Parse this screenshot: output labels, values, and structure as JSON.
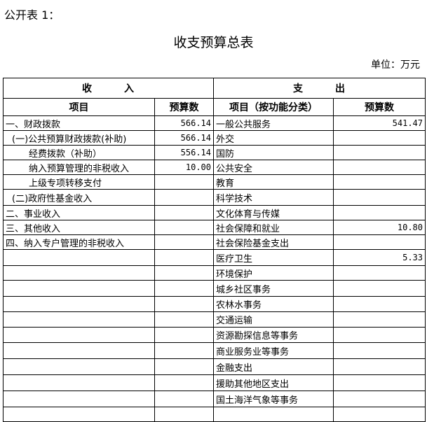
{
  "label": "公开表 1：",
  "title": "收支预算总表",
  "unit": "单位：万元",
  "header": {
    "income": "收　　　入",
    "expense": "支　　　出",
    "item": "项目",
    "budget": "预算数",
    "func_item": "项目（按功能分类）",
    "func_budget": "预算数"
  },
  "rows": [
    {
      "in": "一、财政拨款",
      "indent": 0,
      "inv": "566.14",
      "out": "一般公共服务",
      "outv": "541.47"
    },
    {
      "in": "(一)公共预算财政拨款(补助)",
      "indent": 1,
      "inv": "566.14",
      "out": "外交",
      "outv": ""
    },
    {
      "in": "经费拨款（补助）",
      "indent": 2,
      "inv": "556.14",
      "out": "国防",
      "outv": ""
    },
    {
      "in": "纳入预算管理的非税收入",
      "indent": 2,
      "inv": "10.00",
      "out": "公共安全",
      "outv": ""
    },
    {
      "in": "上级专项转移支付",
      "indent": 2,
      "inv": "",
      "out": "教育",
      "outv": ""
    },
    {
      "in": "(二)政府性基金收入",
      "indent": 1,
      "inv": "",
      "out": "科学技术",
      "outv": ""
    },
    {
      "in": "二、事业收入",
      "indent": 0,
      "inv": "",
      "out": "文化体育与传媒",
      "outv": ""
    },
    {
      "in": "三、其他收入",
      "indent": 0,
      "inv": "",
      "out": "社会保障和就业",
      "outv": "10.80"
    },
    {
      "in": "四、纳入专户管理的非税收入",
      "indent": 0,
      "inv": "",
      "out": "社会保险基金支出",
      "outv": ""
    },
    {
      "in": "",
      "indent": 0,
      "inv": "",
      "out": "医疗卫生",
      "outv": "5.33"
    },
    {
      "in": "",
      "indent": 0,
      "inv": "",
      "out": "环境保护",
      "outv": ""
    },
    {
      "in": "",
      "indent": 0,
      "inv": "",
      "out": "城乡社区事务",
      "outv": ""
    },
    {
      "in": "",
      "indent": 0,
      "inv": "",
      "out": "农林水事务",
      "outv": ""
    },
    {
      "in": "",
      "indent": 0,
      "inv": "",
      "out": "交通运输",
      "outv": ""
    },
    {
      "in": "",
      "indent": 0,
      "inv": "",
      "out": "资源勘探信息等事务",
      "outv": ""
    },
    {
      "in": "",
      "indent": 0,
      "inv": "",
      "out": "商业服务业等事务",
      "outv": ""
    },
    {
      "in": "",
      "indent": 0,
      "inv": "",
      "out": "金融支出",
      "outv": ""
    },
    {
      "in": "",
      "indent": 0,
      "inv": "",
      "out": "援助其他地区支出",
      "outv": ""
    },
    {
      "in": "",
      "indent": 0,
      "inv": "",
      "out": "国土海洋气象等事务",
      "outv": ""
    },
    {
      "in": "",
      "indent": 0,
      "inv": "",
      "out": "",
      "outv": ""
    }
  ]
}
